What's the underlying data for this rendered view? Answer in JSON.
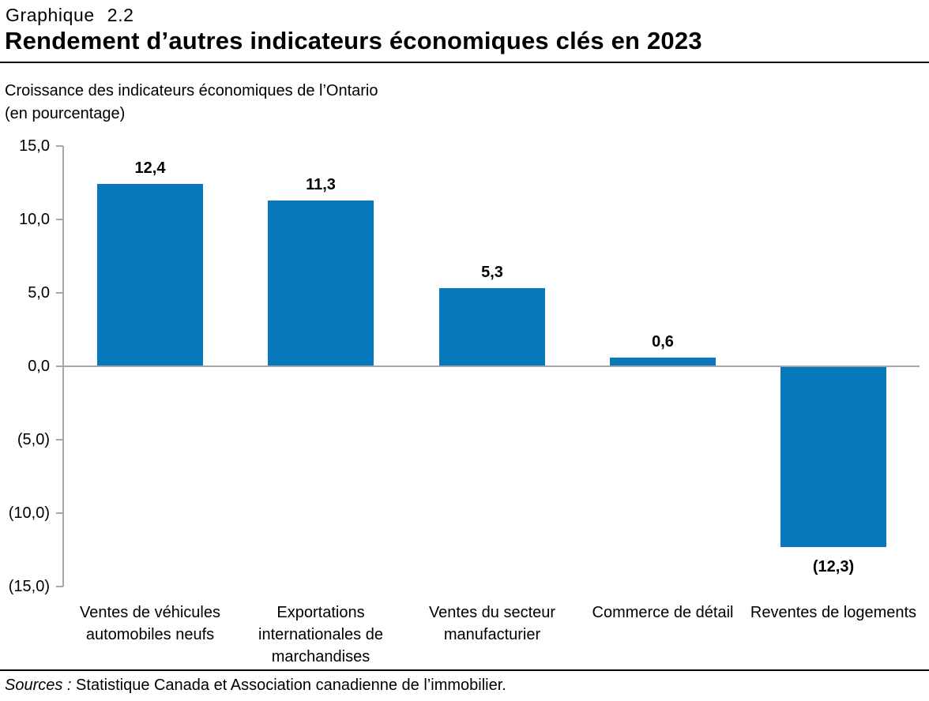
{
  "header": {
    "chart_number": "Graphique 2.2",
    "title": "Rendement d’autres indicateurs économiques clés en 2023"
  },
  "subtitle": {
    "line1": "Croissance des indicateurs économiques de l’Ontario",
    "line2": "(en pourcentage)"
  },
  "chart_data": {
    "type": "bar",
    "title": "Rendement d’autres indicateurs économiques clés en 2023",
    "ylabel": "Croissance des indicateurs économiques de l’Ontario (en pourcentage)",
    "xlabel": "",
    "ylim": [
      -15,
      15
    ],
    "ytick_interval": 5,
    "grid": false,
    "legend": "none",
    "bar_color": "#0878BC",
    "axis_color": "#A6A6A6",
    "label_color": "#000000",
    "categories": [
      "Ventes de véhicules automobiles neufs",
      "Exportations internationales de marchandises",
      "Ventes du secteur manufacturier",
      "Commerce de détail",
      "Reventes de logements"
    ],
    "values": [
      12.4,
      11.3,
      5.3,
      0.6,
      -12.3
    ],
    "value_labels": [
      "12,4",
      "11,3",
      "5,3",
      "0,6",
      "(12,3)"
    ],
    "ytick_values": [
      15,
      10,
      5,
      0,
      -5,
      -10,
      -15
    ],
    "ytick_labels": [
      "15,0",
      "10,0",
      "5,0",
      "0,0",
      "(5,0)",
      "(10,0)",
      "(15,0)"
    ]
  },
  "footer": {
    "sources_label": "Sources :",
    "sources_text": "Statistique Canada et Association canadienne de l’immobilier."
  }
}
